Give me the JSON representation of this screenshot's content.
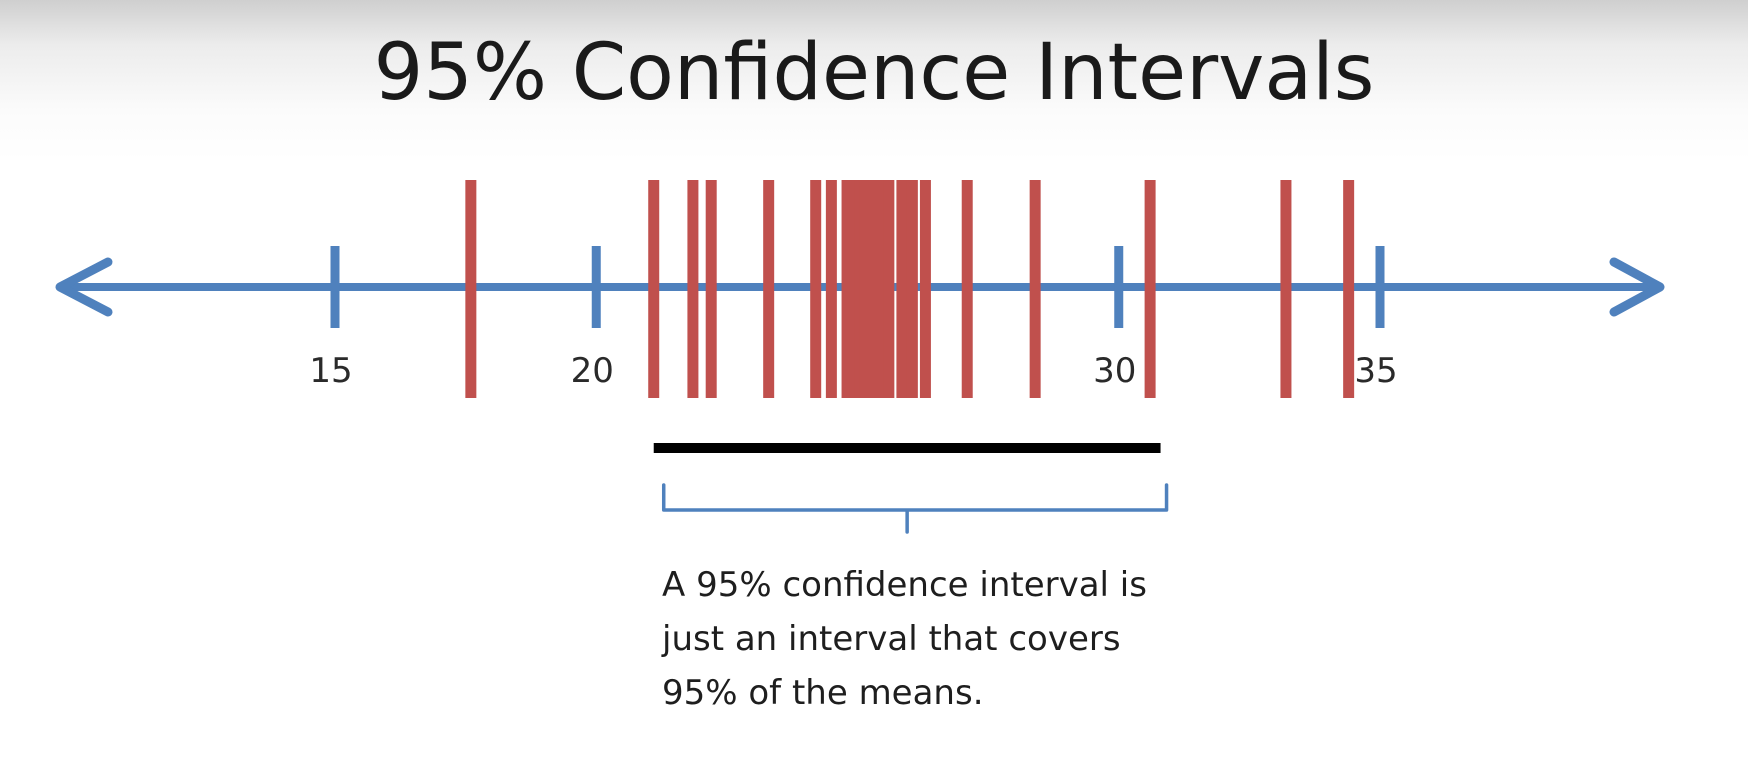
{
  "title": "95% Confidence Intervals",
  "number_line": {
    "min": 10,
    "max": 41,
    "ticks": [
      15,
      20,
      25,
      30,
      35
    ],
    "tick_labels": [
      "15",
      "20",
      "",
      "30",
      "35"
    ],
    "axis_color": "#4f81bd",
    "left-arrow-icon": "left-arrow-icon",
    "right-arrow-icon": "right-arrow-icon"
  },
  "means": {
    "color": "#c0504d",
    "values": [
      17.6,
      21.1,
      21.85,
      22.2,
      23.3,
      24.2,
      24.5,
      24.8,
      24.95,
      25.05,
      25.15,
      25.3,
      25.45,
      25.6,
      25.85,
      26.05,
      26.3,
      27.1,
      28.4,
      30.6,
      33.2,
      34.4
    ]
  },
  "interval": {
    "low": 21.1,
    "high": 30.8,
    "color": "#000000"
  },
  "brace": {
    "color": "#4f81bd"
  },
  "caption": {
    "lines": [
      "A 95% confidence interval is",
      "just an interval that covers",
      "95% of the means."
    ]
  }
}
